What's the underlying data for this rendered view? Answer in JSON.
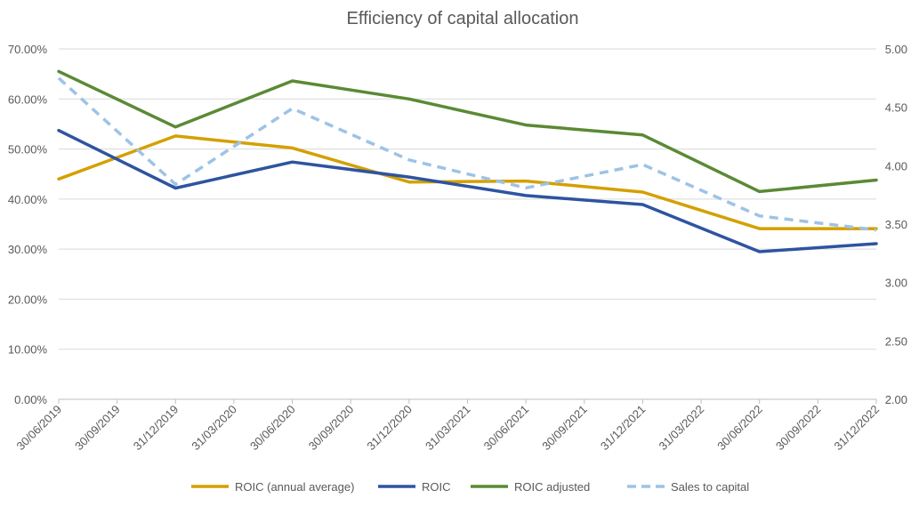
{
  "chart_data": {
    "type": "line",
    "title": "Efficiency of capital allocation",
    "x_ticks": [
      "30/06/2019",
      "30/09/2019",
      "31/12/2019",
      "31/03/2020",
      "30/06/2020",
      "30/09/2020",
      "31/12/2020",
      "31/03/2021",
      "30/06/2021",
      "30/09/2021",
      "31/12/2021",
      "31/03/2022",
      "30/06/2022",
      "30/09/2022",
      "31/12/2022"
    ],
    "y_left": {
      "min": 0,
      "max": 70,
      "ticks": [
        "0.00%",
        "10.00%",
        "20.00%",
        "30.00%",
        "40.00%",
        "50.00%",
        "60.00%",
        "70.00%"
      ]
    },
    "y_right": {
      "min": 2.0,
      "max": 5.0,
      "ticks": [
        "2.00",
        "2.50",
        "3.00",
        "3.50",
        "4.00",
        "4.50",
        "5.00"
      ]
    },
    "grid": "horizontal",
    "legend_position": "bottom",
    "x": [
      "30/06/2019",
      "31/12/2019",
      "30/06/2020",
      "31/12/2020",
      "30/06/2021",
      "31/12/2021",
      "30/06/2022",
      "31/12/2022"
    ],
    "series": [
      {
        "name": "ROIC (annual average)",
        "axis": "left",
        "color": "#d4a000",
        "dash": false,
        "values": [
          44.0,
          52.6,
          50.2,
          43.4,
          43.6,
          41.4,
          34.1,
          34.1
        ]
      },
      {
        "name": "ROIC",
        "axis": "left",
        "color": "#2e54a0",
        "dash": false,
        "values": [
          53.7,
          42.2,
          47.4,
          44.4,
          40.7,
          38.9,
          29.5,
          31.1
        ]
      },
      {
        "name": "ROIC adjusted",
        "axis": "left",
        "color": "#5a8a35",
        "dash": false,
        "values": [
          65.5,
          54.4,
          63.6,
          60.0,
          54.8,
          52.8,
          41.5,
          43.8
        ]
      },
      {
        "name": "Sales to capital",
        "axis": "right",
        "color": "#9dc3e6",
        "dash": true,
        "values": [
          4.75,
          3.84,
          4.49,
          4.05,
          3.81,
          4.01,
          3.57,
          3.45
        ]
      }
    ]
  }
}
